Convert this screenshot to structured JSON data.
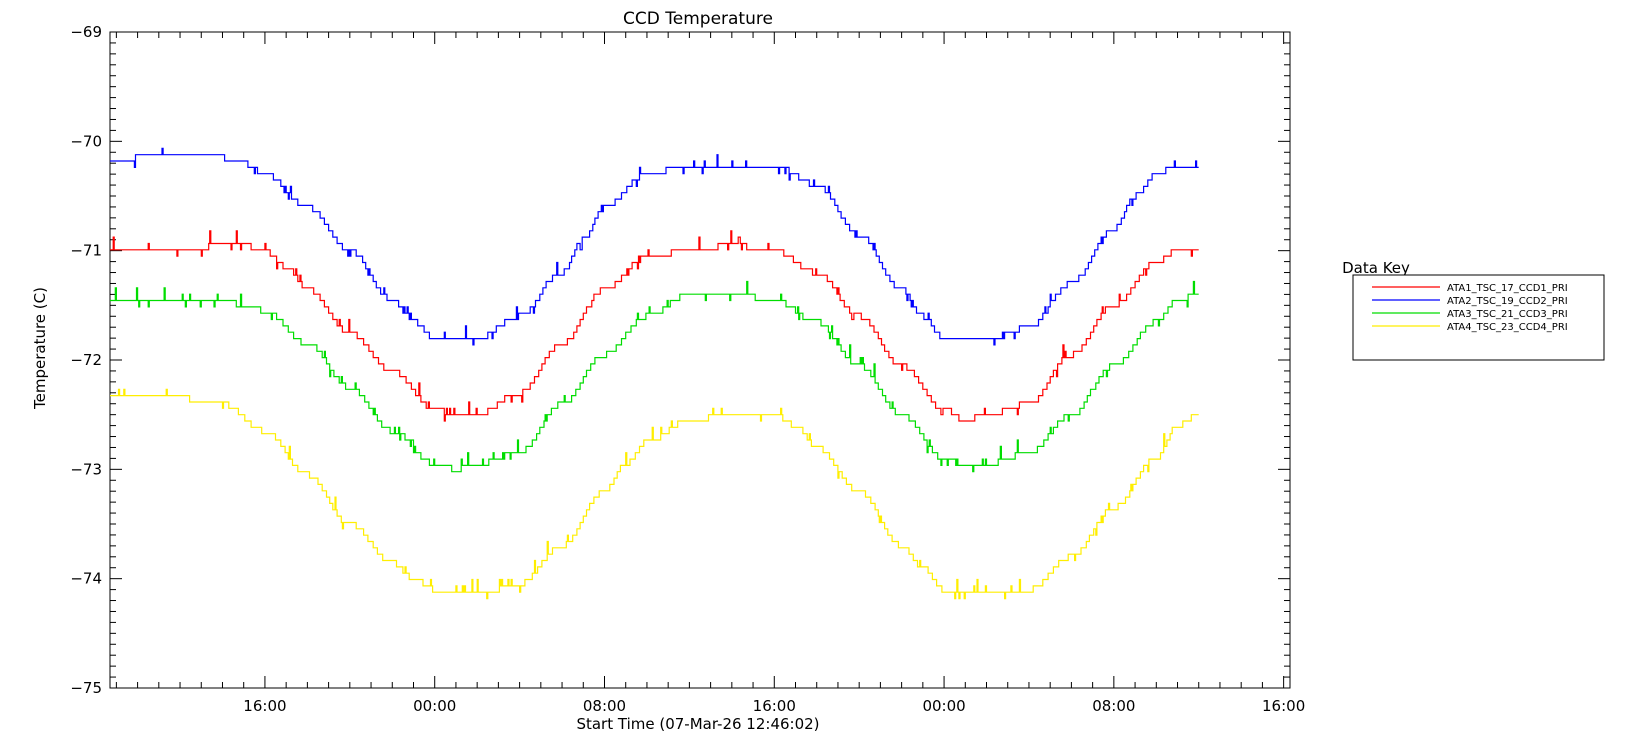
{
  "chart_data": {
    "type": "line",
    "title": "CCD Temperature",
    "xlabel": "Start Time (07-Mar-26 12:46:02)",
    "ylabel": "Temperature (C)",
    "xlim": [
      -3.3,
      52.3
    ],
    "ylim": [
      -75,
      -69
    ],
    "x_unit": "hours since 07-Mar-26 12:00",
    "x_ticks": [
      {
        "x": 4,
        "label": "16:00"
      },
      {
        "x": 12,
        "label": "00:00"
      },
      {
        "x": 20,
        "label": "08:00"
      },
      {
        "x": 28,
        "label": "16:00"
      },
      {
        "x": 36,
        "label": "00:00"
      },
      {
        "x": 44,
        "label": "08:00"
      },
      {
        "x": 52,
        "label": "16:00"
      }
    ],
    "y_ticks": [
      {
        "y": -69,
        "label": "−69"
      },
      {
        "y": -70,
        "label": "−70"
      },
      {
        "y": -71,
        "label": "−71"
      },
      {
        "y": -72,
        "label": "−72"
      },
      {
        "y": -73,
        "label": "−73"
      },
      {
        "y": -74,
        "label": "−74"
      },
      {
        "y": -75,
        "label": "−75"
      }
    ],
    "legend": {
      "title": "Data Key",
      "position": "right"
    },
    "series": [
      {
        "name": "ATA1_TSC_17_CCD1_PRI",
        "color": "#ff0000",
        "x": [
          -3.3,
          0,
          2,
          3,
          4,
          5,
          6,
          8,
          10,
          12,
          13,
          14,
          16,
          18,
          20,
          22,
          24,
          26,
          28,
          30,
          32,
          34,
          36,
          37,
          38,
          40,
          42,
          44,
          46,
          47,
          48
        ],
        "y": [
          -71,
          -71,
          -70.95,
          -70.95,
          -71,
          -71.15,
          -71.35,
          -71.75,
          -72.1,
          -72.45,
          -72.5,
          -72.5,
          -72.3,
          -71.85,
          -71.35,
          -71.05,
          -71,
          -70.95,
          -71,
          -71.2,
          -71.6,
          -72.05,
          -72.45,
          -72.55,
          -72.5,
          -72.4,
          -71.95,
          -71.5,
          -71.1,
          -71,
          -71
        ]
      },
      {
        "name": "ATA2_TSC_19_CCD2_PRI",
        "color": "#0000ff",
        "x": [
          -3.3,
          -2,
          0,
          2,
          3,
          4,
          6,
          8,
          10,
          11,
          12,
          13,
          14,
          16,
          18,
          19,
          20,
          22,
          24,
          26,
          28,
          30,
          32,
          34,
          35,
          36,
          37,
          38,
          40,
          42,
          44,
          45,
          46,
          47,
          48
        ],
        "y": [
          -70.2,
          -70.15,
          -70.15,
          -70.15,
          -70.2,
          -70.3,
          -70.6,
          -71,
          -71.45,
          -71.65,
          -71.8,
          -71.8,
          -71.8,
          -71.6,
          -71.2,
          -70.9,
          -70.6,
          -70.3,
          -70.22,
          -70.22,
          -70.22,
          -70.4,
          -70.85,
          -71.35,
          -71.6,
          -71.8,
          -71.82,
          -71.82,
          -71.7,
          -71.3,
          -70.8,
          -70.5,
          -70.3,
          -70.22,
          -70.22
        ]
      },
      {
        "name": "ATA3_TSC_21_CCD3_PRI",
        "color": "#00dd00",
        "x": [
          -3.3,
          0,
          2,
          3,
          4,
          6,
          8,
          10,
          12,
          13,
          14,
          16,
          18,
          20,
          22,
          24,
          26,
          28,
          30,
          32,
          34,
          36,
          37,
          38,
          40,
          42,
          44,
          46,
          47,
          48
        ],
        "y": [
          -71.45,
          -71.45,
          -71.45,
          -71.5,
          -71.55,
          -71.85,
          -72.25,
          -72.65,
          -72.95,
          -73,
          -72.95,
          -72.85,
          -72.4,
          -71.95,
          -71.6,
          -71.4,
          -71.4,
          -71.45,
          -71.65,
          -72.05,
          -72.5,
          -72.9,
          -72.95,
          -72.95,
          -72.85,
          -72.5,
          -72.05,
          -71.65,
          -71.45,
          -71.4
        ]
      },
      {
        "name": "ATA4_TSC_23_CCD4_PRI",
        "color": "#ffee00",
        "x": [
          -3.3,
          0,
          2,
          4,
          6,
          8,
          10,
          11,
          12,
          13,
          14,
          16,
          18,
          20,
          21,
          22,
          24,
          26,
          28,
          29,
          30,
          32,
          34,
          35,
          36,
          37,
          38,
          40,
          42,
          44,
          46,
          47,
          48
        ],
        "y": [
          -72.35,
          -72.35,
          -72.4,
          -72.65,
          -73.05,
          -73.5,
          -73.85,
          -74,
          -74.1,
          -74.1,
          -74.15,
          -74.05,
          -73.7,
          -73.2,
          -72.95,
          -72.75,
          -72.55,
          -72.5,
          -72.5,
          -72.6,
          -72.8,
          -73.2,
          -73.7,
          -73.9,
          -74.1,
          -74.15,
          -74.15,
          -74.1,
          -73.8,
          -73.35,
          -72.9,
          -72.6,
          -72.5
        ]
      }
    ]
  }
}
